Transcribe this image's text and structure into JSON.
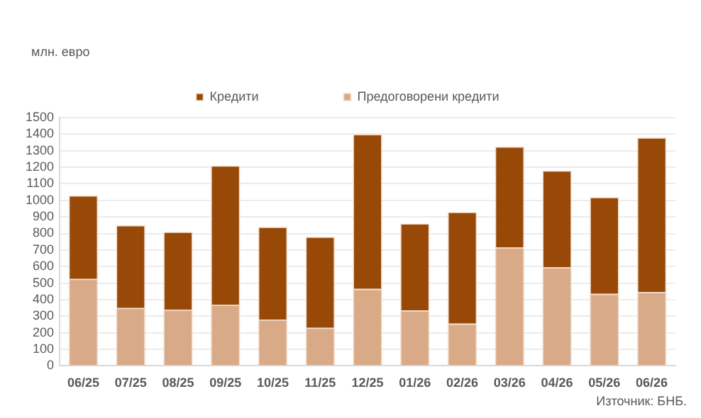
{
  "chart_data": {
    "type": "bar",
    "stacked": true,
    "ylabel": "млн. евро",
    "categories": [
      "06/25",
      "07/25",
      "08/25",
      "09/25",
      "10/25",
      "11/25",
      "12/25",
      "01/26",
      "02/26",
      "03/26",
      "04/26",
      "05/26",
      "06/26"
    ],
    "series": [
      {
        "name": "Предоговорени кредити",
        "color": "#d9aa88",
        "values": [
          525,
          350,
          340,
          370,
          280,
          230,
          465,
          335,
          255,
          715,
          595,
          435,
          445
        ]
      },
      {
        "name": "Кредити",
        "color": "#984807",
        "values": [
          505,
          500,
          470,
          840,
          560,
          550,
          935,
          525,
          675,
          610,
          585,
          585,
          935
        ]
      }
    ],
    "ylim": [
      0,
      1500
    ],
    "yticks": [
      0,
      100,
      200,
      300,
      400,
      500,
      600,
      700,
      800,
      900,
      1000,
      1100,
      1200,
      1300,
      1400,
      1500
    ],
    "grid": "y",
    "legend": "top",
    "annotations": [
      "Източник: БНБ."
    ]
  }
}
